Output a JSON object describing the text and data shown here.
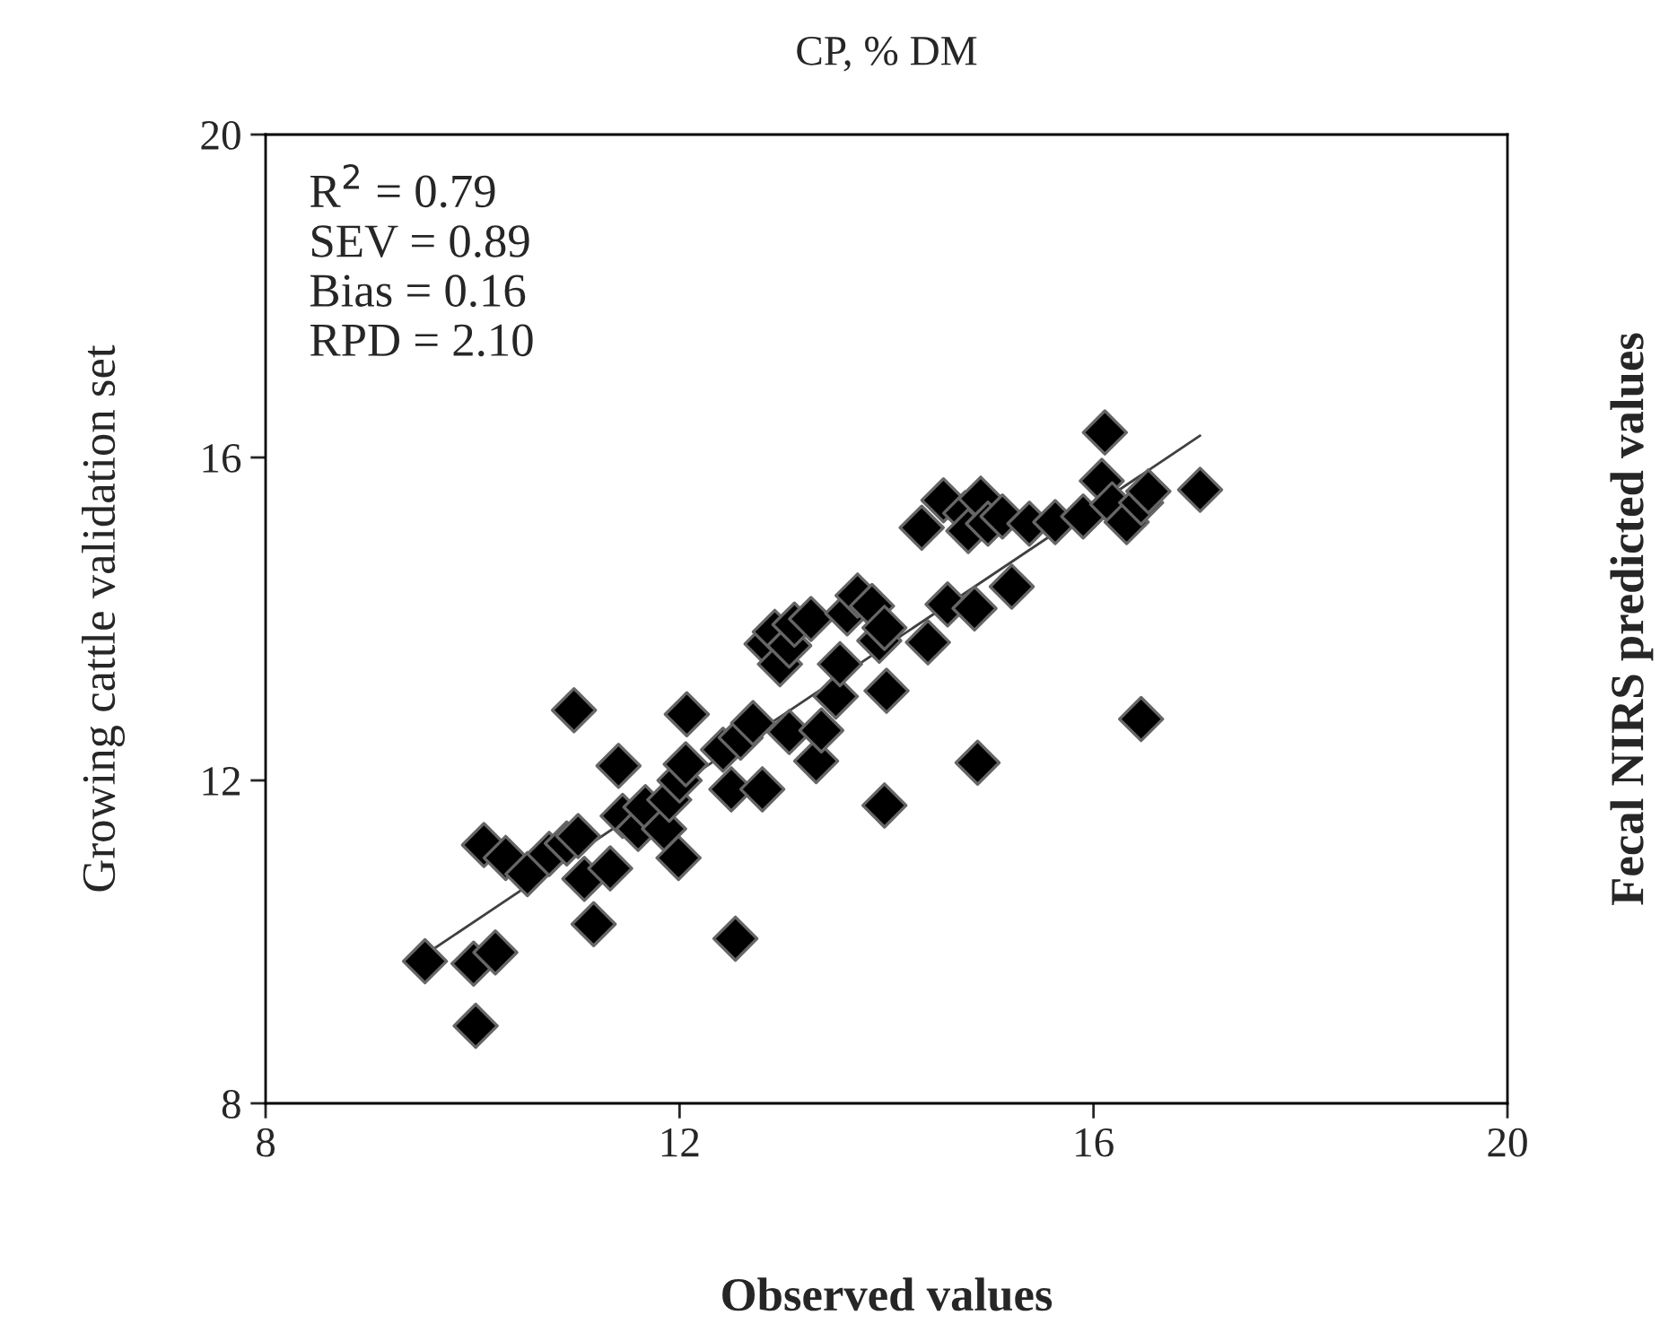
{
  "chart_data": {
    "type": "scatter",
    "title": "CP, % DM",
    "xlabel": "Observed values",
    "ylabel": "Growing cattle validation set",
    "y2label": "Fecal NIRS predicted values",
    "annotations": [
      "R$^{2}$ = 0.79",
      "SEV = 0.89",
      "Bias = 0.16",
      "RPD = 2.10"
    ],
    "xlim": [
      8,
      20
    ],
    "ylim": [
      8,
      20
    ],
    "xticks": [
      8,
      12,
      16,
      20
    ],
    "yticks": [
      8,
      12,
      16,
      20
    ],
    "grid": false,
    "legend": false,
    "series": [
      {
        "marker": "diamond",
        "color": "#000000",
        "x": [
          9.54,
          10.03,
          10.01,
          10.22,
          10.11,
          10.32,
          10.53,
          10.74,
          10.91,
          11.02,
          10.98,
          11.08,
          11.17,
          11.33,
          11.41,
          11.45,
          11.6,
          11.67,
          11.85,
          11.9,
          11.99,
          12.0,
          12.06,
          12.07,
          12.42,
          12.5,
          12.54,
          12.59,
          12.71,
          12.8,
          12.84,
          12.92,
          12.97,
          13.06,
          13.11,
          13.06,
          13.32,
          13.37,
          13.27,
          13.51,
          13.55,
          13.62,
          13.72,
          13.86,
          13.93,
          13.98,
          14.0,
          13.98,
          14.34,
          14.4,
          14.55,
          14.59,
          14.76,
          14.79,
          14.91,
          14.98,
          14.88,
          14.85,
          15.12,
          15.21,
          15.38,
          15.63,
          15.9,
          16.08,
          16.11,
          16.18,
          16.32,
          16.46,
          16.53,
          16.46,
          17.03
        ],
        "values": [
          9.76,
          8.96,
          9.73,
          9.87,
          11.2,
          11.04,
          10.84,
          11.09,
          11.22,
          11.31,
          12.87,
          10.78,
          10.22,
          10.91,
          12.18,
          11.56,
          11.4,
          11.67,
          11.4,
          11.76,
          11.04,
          12.0,
          12.2,
          12.82,
          12.38,
          11.89,
          10.04,
          12.53,
          12.71,
          11.89,
          13.69,
          13.84,
          13.44,
          13.67,
          13.93,
          12.6,
          12.24,
          12.62,
          14.0,
          13.04,
          13.44,
          14.07,
          14.29,
          14.16,
          13.73,
          13.89,
          13.11,
          11.69,
          15.13,
          13.71,
          15.47,
          14.18,
          15.31,
          15.09,
          15.49,
          15.18,
          12.22,
          14.13,
          15.27,
          14.4,
          15.18,
          15.2,
          15.27,
          15.71,
          16.31,
          15.42,
          15.2,
          15.44,
          15.58,
          12.76,
          15.6
        ]
      },
      {
        "type": "line",
        "color": "#404040",
        "x": [
          9.55,
          17.03
        ],
        "values": [
          9.85,
          16.27
        ]
      }
    ]
  }
}
